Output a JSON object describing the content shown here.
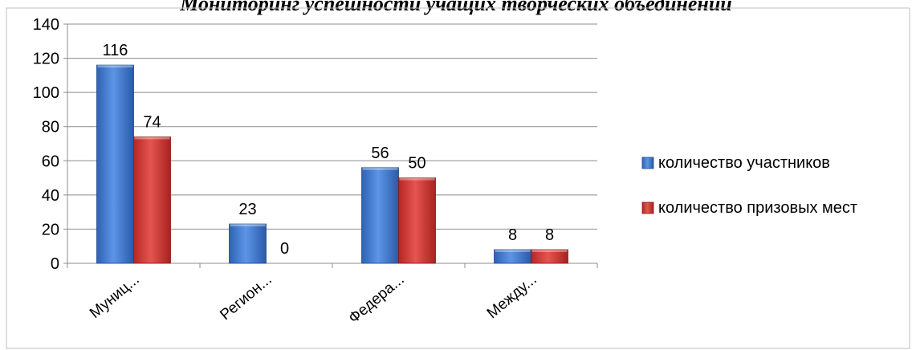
{
  "chart_data": {
    "type": "bar",
    "title": "Мониторинг успешности учащих творческих объединений",
    "categories": [
      "Муниц...",
      "Регион...",
      "Федера...",
      "Между..."
    ],
    "series": [
      {
        "name": "количество участников",
        "values": [
          116,
          23,
          56,
          8
        ],
        "color": "#4a7fd0"
      },
      {
        "name": "количество призовых мест",
        "values": [
          74,
          0,
          50,
          8
        ],
        "color": "#d23a36"
      }
    ],
    "ylim": [
      0,
      140
    ],
    "yticks": [
      0,
      20,
      40,
      60,
      80,
      100,
      120,
      140
    ],
    "grid": true,
    "legend_position": "right",
    "xlabel": "",
    "ylabel": ""
  }
}
